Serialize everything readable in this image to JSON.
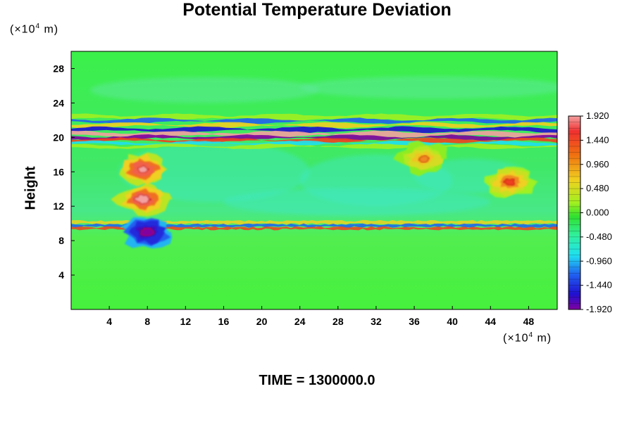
{
  "chart_data": {
    "type": "heatmap",
    "title": "Potential Temperature Deviation",
    "ylabel": "Height",
    "y_unit_note": "(×10",
    "unit_exponent": "4",
    "unit_suffix": " m)",
    "x_unit_note": "(×10",
    "xlim": [
      0,
      51
    ],
    "ylim": [
      0,
      30
    ],
    "x_ticks": [
      "4",
      "8",
      "12",
      "16",
      "20",
      "24",
      "28",
      "32",
      "36",
      "40",
      "44",
      "48"
    ],
    "x_tick_values": [
      4,
      8,
      12,
      16,
      20,
      24,
      28,
      32,
      36,
      40,
      44,
      48
    ],
    "y_ticks": [
      "4",
      "8",
      "12",
      "16",
      "20",
      "24",
      "28"
    ],
    "y_tick_values": [
      4,
      8,
      12,
      16,
      20,
      24,
      28
    ],
    "colorbar": {
      "min": -1.92,
      "max": 1.92,
      "labels": [
        "1.920",
        "1.440",
        "0.960",
        "0.480",
        "0.000",
        "-0.480",
        "-0.960",
        "-1.440",
        "-1.920"
      ],
      "label_values": [
        1.92,
        1.44,
        0.96,
        0.48,
        0.0,
        -0.48,
        -0.96,
        -1.44,
        -1.92
      ]
    },
    "time_label": "TIME = 1300000.0",
    "features": [
      {
        "name": "upper anomaly band",
        "x_range": [
          0,
          51
        ],
        "y_range": [
          19.5,
          22.5
        ],
        "value_range": [
          -1.92,
          1.92
        ]
      },
      {
        "name": "lower anomaly band",
        "x_range": [
          0,
          51
        ],
        "y_range": [
          9.5,
          10.3
        ],
        "value_range": [
          -1.0,
          1.5
        ]
      },
      {
        "name": "warm patch",
        "x": 7.5,
        "y": 12.8,
        "value": 1.92
      },
      {
        "name": "warm patch",
        "x": 7.5,
        "y": 16.3,
        "value": 1.92
      },
      {
        "name": "cold patch",
        "x": 8.0,
        "y": 9.0,
        "value": -1.92
      },
      {
        "name": "warm patch",
        "x": 46.0,
        "y": 14.8,
        "value": 1.44
      },
      {
        "name": "warm patch",
        "x": 37.0,
        "y": 17.5,
        "value": 1.2
      }
    ]
  }
}
